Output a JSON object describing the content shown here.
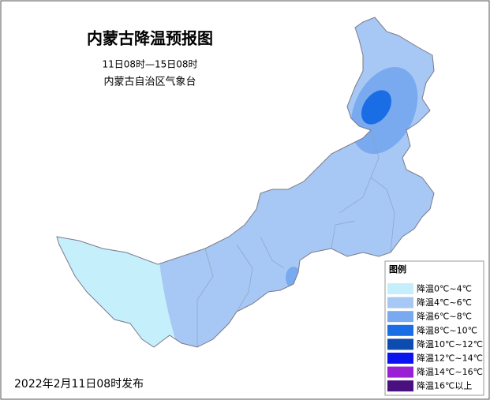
{
  "header": {
    "title": "内蒙古降温预报图",
    "period": "11日08时—15日08时",
    "issuer": "内蒙古自治区气象台"
  },
  "legend": {
    "title": "图例",
    "items": [
      {
        "label": "降温0℃~4℃",
        "color": "#c6effc"
      },
      {
        "label": "降温4℃~6℃",
        "color": "#a7c8f4"
      },
      {
        "label": "降温6℃~8℃",
        "color": "#79a9ef"
      },
      {
        "label": "降温8℃~10℃",
        "color": "#1b6de6"
      },
      {
        "label": "降温10℃~12℃",
        "color": "#0c4cb0"
      },
      {
        "label": "降温12℃~14℃",
        "color": "#0a14ef"
      },
      {
        "label": "降温14℃~16℃",
        "color": "#9a20d6"
      },
      {
        "label": "降温16℃以上",
        "color": "#4a1080"
      }
    ]
  },
  "footer": {
    "issued": "2022年2月11日08时发布"
  }
}
